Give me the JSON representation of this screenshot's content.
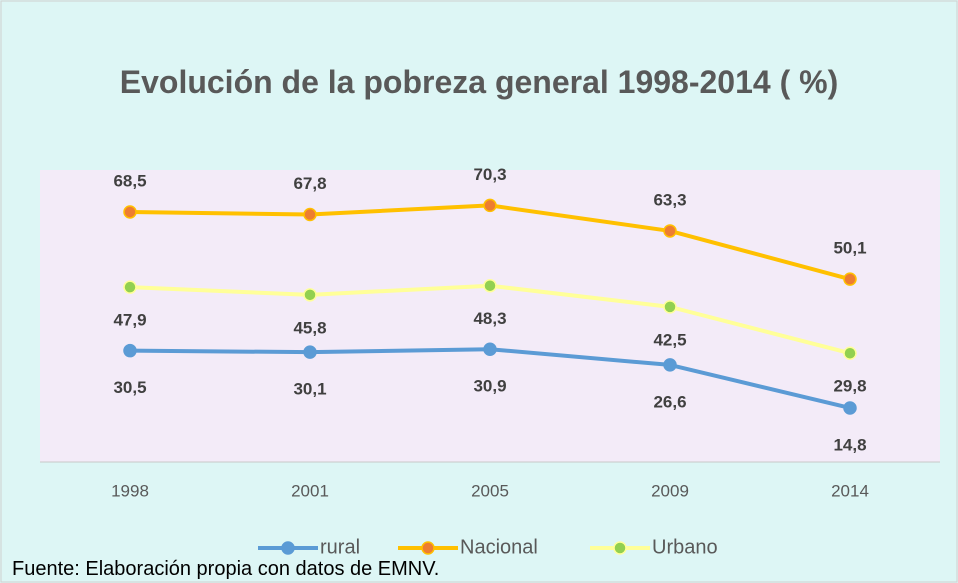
{
  "chart_data": {
    "type": "line",
    "title": "Evolución de la pobreza general 1998-2014 ( %)",
    "categories": [
      "1998",
      "2001",
      "2005",
      "2009",
      "2014"
    ],
    "series": [
      {
        "name": "rural",
        "color": "#5b9bd5",
        "marker_color": "#5b9bd5",
        "values": [
          30.5,
          30.1,
          30.9,
          26.6,
          14.8
        ]
      },
      {
        "name": "Nacional",
        "color": "#ffc000",
        "marker_color": "#ed7d31",
        "values": [
          68.5,
          67.8,
          70.3,
          63.3,
          50.1
        ]
      },
      {
        "name": "Urbano",
        "color": "#ffff99",
        "marker_color": "#92d050",
        "values": [
          47.9,
          45.8,
          48.3,
          42.5,
          29.8
        ]
      }
    ],
    "value_labels": [
      [
        "30,5",
        "30,1",
        "30,9",
        "26,6",
        "14,8"
      ],
      [
        "68,5",
        "67,8",
        "70,3",
        "63,3",
        "50,1"
      ],
      [
        "47,9",
        "45,8",
        "48,3",
        "42,5",
        "29,8"
      ]
    ],
    "ylim": [
      0,
      80
    ],
    "legend": "bottom",
    "source": "Fuente: Elaboración propia con datos de EMNV."
  }
}
